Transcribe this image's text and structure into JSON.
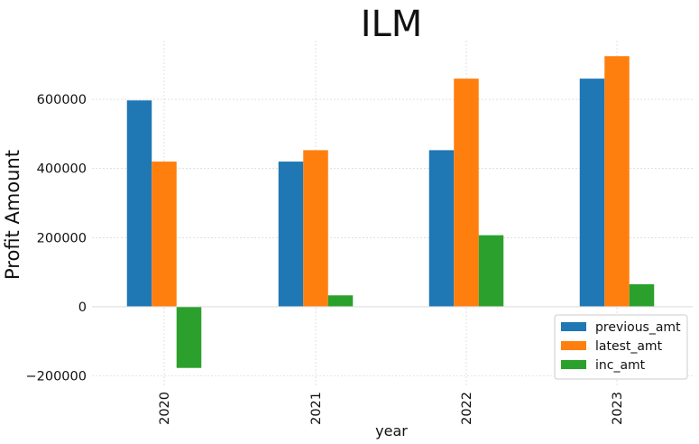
{
  "chart_data": {
    "type": "bar",
    "title": "ILM",
    "xlabel": "year",
    "ylabel": "Profit Amount",
    "categories": [
      "2020",
      "2021",
      "2022",
      "2023"
    ],
    "series": [
      {
        "name": "previous_amt",
        "color": "#1f77b4",
        "values": [
          597000,
          420000,
          453000,
          660000
        ]
      },
      {
        "name": "latest_amt",
        "color": "#ff7f0e",
        "values": [
          420000,
          453000,
          660000,
          725000
        ]
      },
      {
        "name": "inc_amt",
        "color": "#2ca02c",
        "values": [
          -177000,
          33000,
          207000,
          65000
        ]
      }
    ],
    "yticks": [
      -200000,
      0,
      200000,
      400000,
      600000
    ],
    "ytick_labels": [
      "−200000",
      "0",
      "200000",
      "400000",
      "600000"
    ],
    "ylim": [
      -230000,
      770000
    ],
    "grid": true,
    "legend_position": "bottom-right"
  }
}
